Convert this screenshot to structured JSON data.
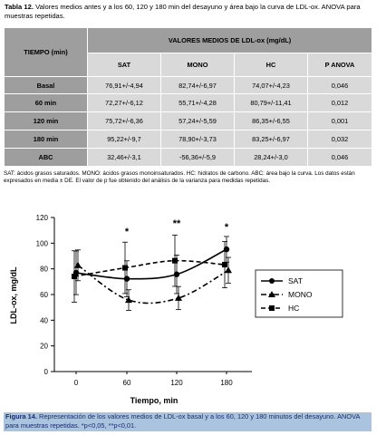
{
  "table_caption": {
    "label": "Tabla 12.",
    "text": "Valores medios antes y a los 60, 120 y 180 min del desayuno y área bajo la curva de LDL-ox. ANOVA para muestras repetidas."
  },
  "table": {
    "row_header": "TIEMPO (min)",
    "group_header": "VALORES MEDIOS DE LDL-ox (mg/dL)",
    "columns": [
      "SAT",
      "MONO",
      "HC",
      "P ANOVA"
    ],
    "rows": [
      {
        "label": "Basal",
        "values": [
          "76,91+/-4,94",
          "82,74+/-6,97",
          "74,07+/-4,23",
          "0,046"
        ]
      },
      {
        "label": "60 min",
        "values": [
          "72,27+/-6,12",
          "55,71+/-4,28",
          "80,79+/-11,41",
          "0,012"
        ]
      },
      {
        "label": "120 min",
        "values": [
          "75,72+/-6,36",
          "57,24+/-5,59",
          "86,35+/-6,55",
          "0,001"
        ]
      },
      {
        "label": "180 min",
        "values": [
          "95,22+/-9,7",
          "78,90+/-3,73",
          "83,25+/-6,97",
          "0,032"
        ]
      },
      {
        "label": "ABC",
        "values": [
          "32,46+/-3,1",
          "-56,36+/-5,9",
          "28,24+/-3,0",
          "0,046"
        ]
      }
    ]
  },
  "table_note": "SAT: ácidos grasos saturados. MONO: ácidos grasos monoinsaturados. HC: hidratos de carbono. ABC: área bajo la curva. Los datos están expresados en media ± DE. El valor de p fue obtenido del análisis de la varianza para medidas repetidas.",
  "chart_data": {
    "type": "line",
    "x": [
      0,
      60,
      120,
      180
    ],
    "xlabel": "Tiempo, min",
    "ylabel": "LDL-ox, mg/dL",
    "ylim": [
      0,
      120
    ],
    "yticks": [
      0,
      20,
      40,
      60,
      80,
      100,
      120
    ],
    "grid": false,
    "legend": "right",
    "series": [
      {
        "name": "SAT",
        "values": [
          76.91,
          72.27,
          75.72,
          95.22
        ],
        "err": [
          17,
          14,
          15,
          10
        ],
        "line": "solid",
        "marker": "circle"
      },
      {
        "name": "MONO",
        "values": [
          82.74,
          55.71,
          57.24,
          78.9
        ],
        "err": [
          12,
          8,
          9,
          10
        ],
        "line": "dashdot",
        "marker": "triangle"
      },
      {
        "name": "HC",
        "values": [
          74.07,
          80.79,
          86.35,
          83.25
        ],
        "err": [
          20,
          20,
          20,
          18
        ],
        "line": "dashed",
        "marker": "square"
      }
    ],
    "annotations": [
      {
        "x": 60,
        "text": "*"
      },
      {
        "x": 120,
        "text": "**"
      },
      {
        "x": 180,
        "text": "*"
      }
    ]
  },
  "figure_caption": {
    "label": "Figura 14.",
    "text": "Representación de los valores medios de LDL-ox basal y a los 60, 120 y 180 minutos del desayuno. ANOVA para muestras repetidas. *p<0,05, **p<0,01."
  }
}
